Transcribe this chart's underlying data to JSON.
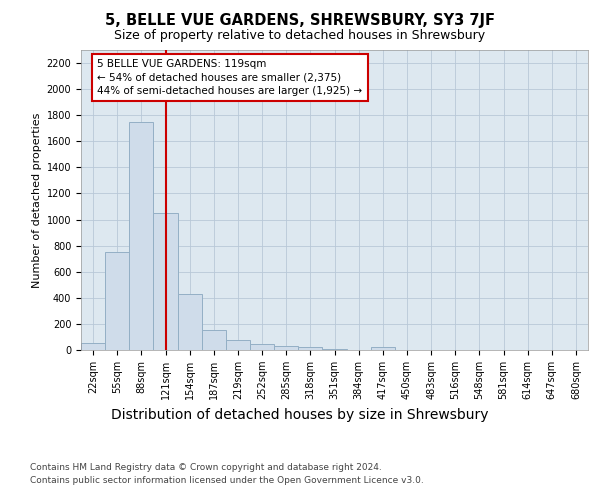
{
  "title": "5, BELLE VUE GARDENS, SHREWSBURY, SY3 7JF",
  "subtitle": "Size of property relative to detached houses in Shrewsbury",
  "xlabel": "Distribution of detached houses by size in Shrewsbury",
  "ylabel": "Number of detached properties",
  "footer_line1": "Contains HM Land Registry data © Crown copyright and database right 2024.",
  "footer_line2": "Contains public sector information licensed under the Open Government Licence v3.0.",
  "bin_labels": [
    "22sqm",
    "55sqm",
    "88sqm",
    "121sqm",
    "154sqm",
    "187sqm",
    "219sqm",
    "252sqm",
    "285sqm",
    "318sqm",
    "351sqm",
    "384sqm",
    "417sqm",
    "450sqm",
    "483sqm",
    "516sqm",
    "548sqm",
    "581sqm",
    "614sqm",
    "647sqm",
    "680sqm"
  ],
  "bar_values": [
    50,
    750,
    1750,
    1050,
    430,
    155,
    80,
    45,
    30,
    20,
    5,
    2,
    20,
    0,
    0,
    0,
    0,
    0,
    0,
    0,
    0
  ],
  "bar_color": "#cfdcea",
  "bar_edge_color": "#93afc5",
  "grid_color": "#b8c8d8",
  "bg_color": "#dde8f0",
  "property_line_x": 3.0,
  "annotation_text": "5 BELLE VUE GARDENS: 119sqm\n← 54% of detached houses are smaller (2,375)\n44% of semi-detached houses are larger (1,925) →",
  "annotation_box_color": "white",
  "annotation_box_edge": "#cc0000",
  "vline_color": "#cc0000",
  "ylim": [
    0,
    2300
  ],
  "yticks": [
    0,
    200,
    400,
    600,
    800,
    1000,
    1200,
    1400,
    1600,
    1800,
    2000,
    2200
  ],
  "title_fontsize": 10.5,
  "subtitle_fontsize": 9,
  "ylabel_fontsize": 8,
  "xlabel_fontsize": 10,
  "tick_fontsize": 7,
  "footer_fontsize": 6.5,
  "ann_fontsize": 7.5
}
